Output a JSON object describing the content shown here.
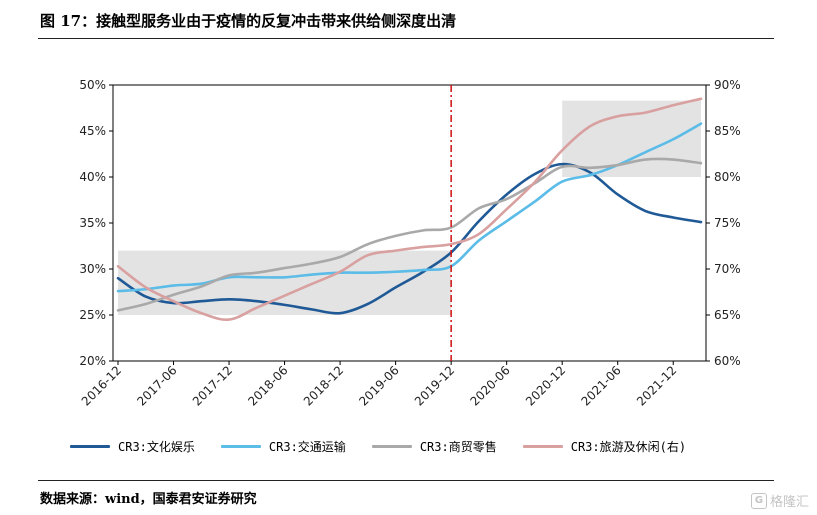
{
  "figure": {
    "title": "图 17：接触型服务业由于疫情的反复冲击带来供给侧深度出清",
    "source": "数据来源：wind，国泰君安证券研究",
    "watermark": "格隆汇",
    "watermark_logo": "G"
  },
  "chart_data": {
    "type": "line",
    "x": [
      "2016-12",
      "2017-03",
      "2017-06",
      "2017-09",
      "2017-12",
      "2018-03",
      "2018-06",
      "2018-09",
      "2018-12",
      "2019-03",
      "2019-06",
      "2019-09",
      "2019-12",
      "2020-03",
      "2020-06",
      "2020-09",
      "2020-12",
      "2021-03",
      "2021-06",
      "2021-09",
      "2021-12",
      "2022-03"
    ],
    "x_tick_labels": [
      "2016-12",
      "2017-06",
      "2017-12",
      "2018-06",
      "2018-12",
      "2019-06",
      "2019-12",
      "2020-06",
      "2020-12",
      "2021-06",
      "2021-12"
    ],
    "ylim_left": [
      0.2,
      0.5
    ],
    "ylim_right": [
      0.6,
      0.9
    ],
    "y_ticks_left": [
      "20%",
      "25%",
      "30%",
      "35%",
      "40%",
      "45%",
      "50%"
    ],
    "y_ticks_right": [
      "60%",
      "65%",
      "70%",
      "75%",
      "80%",
      "85%",
      "90%"
    ],
    "series": [
      {
        "name": "CR3:文化娱乐",
        "axis": "left",
        "color": "#1f5996",
        "values": [
          0.29,
          0.27,
          0.263,
          0.265,
          0.267,
          0.265,
          0.261,
          0.256,
          0.252,
          0.262,
          0.28,
          0.297,
          0.318,
          0.352,
          0.381,
          0.403,
          0.414,
          0.405,
          0.381,
          0.363,
          0.356,
          0.351
        ]
      },
      {
        "name": "CR3:交通运输",
        "axis": "left",
        "color": "#5bbce8",
        "values": [
          0.276,
          0.278,
          0.282,
          0.284,
          0.291,
          0.291,
          0.291,
          0.294,
          0.296,
          0.296,
          0.297,
          0.299,
          0.303,
          0.331,
          0.352,
          0.373,
          0.395,
          0.402,
          0.413,
          0.427,
          0.441,
          0.458
        ]
      },
      {
        "name": "CR3:商贸零售",
        "axis": "left",
        "color": "#a9a9a9",
        "values": [
          0.255,
          0.262,
          0.272,
          0.281,
          0.293,
          0.296,
          0.301,
          0.306,
          0.313,
          0.327,
          0.336,
          0.342,
          0.345,
          0.366,
          0.376,
          0.393,
          0.411,
          0.41,
          0.413,
          0.419,
          0.419,
          0.415
        ]
      },
      {
        "name": "CR3:旅游及休闲(右)",
        "axis": "right",
        "color": "#d9a0a0",
        "values": [
          0.703,
          0.68,
          0.665,
          0.652,
          0.645,
          0.658,
          0.671,
          0.684,
          0.697,
          0.715,
          0.72,
          0.724,
          0.727,
          0.738,
          0.765,
          0.794,
          0.829,
          0.855,
          0.866,
          0.87,
          0.878,
          0.885
        ]
      }
    ],
    "shaded_regions": [
      {
        "x_from": "2016-12",
        "x_to": "2019-12",
        "ylim": [
          0.25,
          0.32
        ]
      },
      {
        "x_from": "2020-12",
        "x_to": "2022-03",
        "ylim": [
          0.4,
          0.483
        ]
      }
    ],
    "vertical_marker": {
      "x": "2019-12",
      "color": "#d01010"
    },
    "grid": false,
    "legend_position": "bottom"
  }
}
